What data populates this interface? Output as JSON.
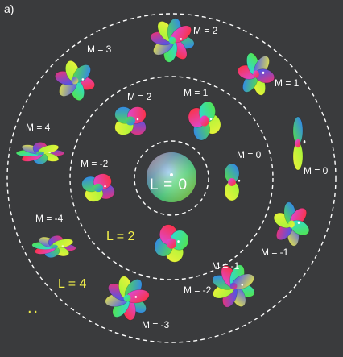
{
  "panel_label": "a)",
  "shell_labels": {
    "l0": "L = 0",
    "l2": "L = 2",
    "l4": "L = 4"
  },
  "m_labels_l2": [
    "M = 2",
    "M = 1",
    "M = 0",
    "M = -1",
    "M = -2"
  ],
  "m_labels_l4": [
    "M = 4",
    "M = 3",
    "M = 2",
    "M = 1",
    "M = 0",
    "M = -1",
    "M = -2",
    "M = -3",
    "M = -4"
  ],
  "ellipsis": "..",
  "colors": {
    "background": "#3a3b3d",
    "circle": "#ffffff",
    "shell_label": "#f2ef4a",
    "lobe_palette": [
      "#2f5cff",
      "#ff2f2f",
      "#58e63b",
      "#f0f03a",
      "#d84be8",
      "#2ad8e8",
      "#ff8a2a"
    ]
  }
}
